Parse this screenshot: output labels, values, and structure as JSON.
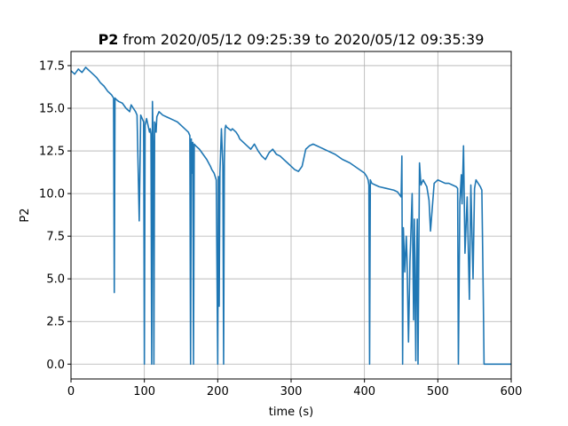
{
  "chart_data": {
    "type": "line",
    "title": {
      "bold": "P2",
      "rest": " from 2020/05/12 09:25:39 to 2020/05/12 09:35:39"
    },
    "xlabel": "time (s)",
    "ylabel": "P2",
    "xlim": [
      0,
      600
    ],
    "ylim": [
      -0.87,
      18.33
    ],
    "grid": true,
    "x_ticks": [
      0,
      100,
      200,
      300,
      400,
      500,
      600
    ],
    "x_tick_labels": [
      "0",
      "100",
      "200",
      "300",
      "400",
      "500",
      "600"
    ],
    "y_ticks": [
      0.0,
      2.5,
      5.0,
      7.5,
      10.0,
      12.5,
      15.0,
      17.5
    ],
    "y_tick_labels": [
      "0.0",
      "2.5",
      "5.0",
      "7.5",
      "10.0",
      "12.5",
      "15.0",
      "17.5"
    ],
    "colors": {
      "series": "#1f77b4",
      "grid": "#b0b0b0"
    },
    "series": [
      {
        "color": "#1f77b4",
        "x": [
          0,
          5,
          10,
          15,
          20,
          25,
          30,
          35,
          40,
          45,
          50,
          55,
          58,
          59,
          60,
          62,
          65,
          70,
          75,
          80,
          82,
          85,
          88,
          90,
          93,
          95,
          96,
          97,
          98,
          99,
          100,
          101,
          103,
          105,
          107,
          108,
          109,
          110,
          111,
          112,
          113,
          114,
          115,
          116,
          117,
          118,
          120,
          125,
          130,
          135,
          140,
          145,
          150,
          155,
          160,
          162,
          163,
          164,
          165,
          166,
          167,
          168,
          170,
          175,
          180,
          185,
          190,
          192,
          195,
          198,
          200,
          201,
          202,
          203,
          205,
          207,
          208,
          209,
          210,
          211,
          212,
          215,
          218,
          220,
          225,
          228,
          230,
          235,
          240,
          245,
          250,
          255,
          260,
          265,
          270,
          275,
          280,
          285,
          290,
          295,
          300,
          305,
          310,
          315,
          320,
          325,
          330,
          335,
          340,
          345,
          350,
          360,
          370,
          380,
          390,
          400,
          403,
          405,
          406,
          407,
          408,
          410,
          415,
          420,
          430,
          440,
          445,
          450,
          451,
          452,
          453,
          455,
          457,
          458,
          460,
          462,
          463,
          465,
          467,
          468,
          470,
          471,
          472,
          473,
          475,
          477,
          480,
          485,
          488,
          490,
          495,
          500,
          505,
          510,
          515,
          520,
          525,
          527,
          528,
          530,
          532,
          533,
          535,
          537,
          540,
          543,
          545,
          548,
          550,
          552,
          555,
          558,
          560,
          562,
          563,
          565,
          570,
          580,
          590,
          600
        ],
        "y": [
          17.2,
          17.0,
          17.3,
          17.1,
          17.4,
          17.2,
          17.0,
          16.8,
          16.5,
          16.3,
          16.0,
          15.8,
          15.6,
          4.2,
          15.6,
          15.5,
          15.4,
          15.3,
          15.0,
          14.8,
          15.2,
          15.0,
          14.8,
          14.6,
          8.4,
          14.6,
          14.5,
          14.4,
          14.3,
          14.2,
          0.0,
          14.0,
          14.4,
          14.0,
          13.6,
          13.8,
          13.5,
          0.0,
          15.4,
          13.0,
          0.0,
          14.2,
          14.0,
          13.6,
          14.5,
          14.6,
          14.8,
          14.6,
          14.5,
          14.4,
          14.3,
          14.2,
          14.0,
          13.8,
          13.6,
          13.4,
          0.0,
          13.2,
          11.2,
          13.0,
          0.0,
          12.9,
          12.8,
          12.6,
          12.3,
          12.0,
          11.6,
          11.4,
          11.2,
          10.8,
          0.0,
          11.0,
          3.4,
          11.2,
          13.8,
          11.6,
          0.0,
          11.8,
          13.8,
          14.0,
          13.9,
          13.8,
          13.7,
          13.8,
          13.6,
          13.4,
          13.2,
          13.0,
          12.8,
          12.6,
          12.9,
          12.5,
          12.2,
          12.0,
          12.4,
          12.6,
          12.3,
          12.2,
          12.0,
          11.8,
          11.6,
          11.4,
          11.3,
          11.6,
          12.6,
          12.8,
          12.9,
          12.8,
          12.7,
          12.6,
          12.5,
          12.3,
          12.0,
          11.8,
          11.5,
          11.2,
          11.0,
          10.8,
          10.5,
          0.0,
          10.8,
          10.6,
          10.5,
          10.4,
          10.3,
          10.2,
          10.1,
          9.8,
          12.2,
          0.0,
          8.0,
          5.4,
          7.5,
          6.2,
          1.3,
          6.0,
          7.3,
          10.0,
          2.6,
          8.5,
          0.2,
          6.0,
          8.5,
          0.0,
          11.8,
          10.5,
          10.8,
          10.4,
          9.6,
          7.8,
          10.6,
          10.8,
          10.7,
          10.6,
          10.6,
          10.5,
          10.4,
          10.3,
          0.0,
          9.5,
          11.1,
          9.4,
          12.8,
          6.5,
          9.8,
          3.8,
          10.5,
          5.0,
          10.3,
          10.8,
          10.6,
          10.4,
          10.2,
          3.8,
          0.0,
          0.0,
          0.0,
          0.0,
          0.0,
          0.0
        ]
      }
    ]
  }
}
